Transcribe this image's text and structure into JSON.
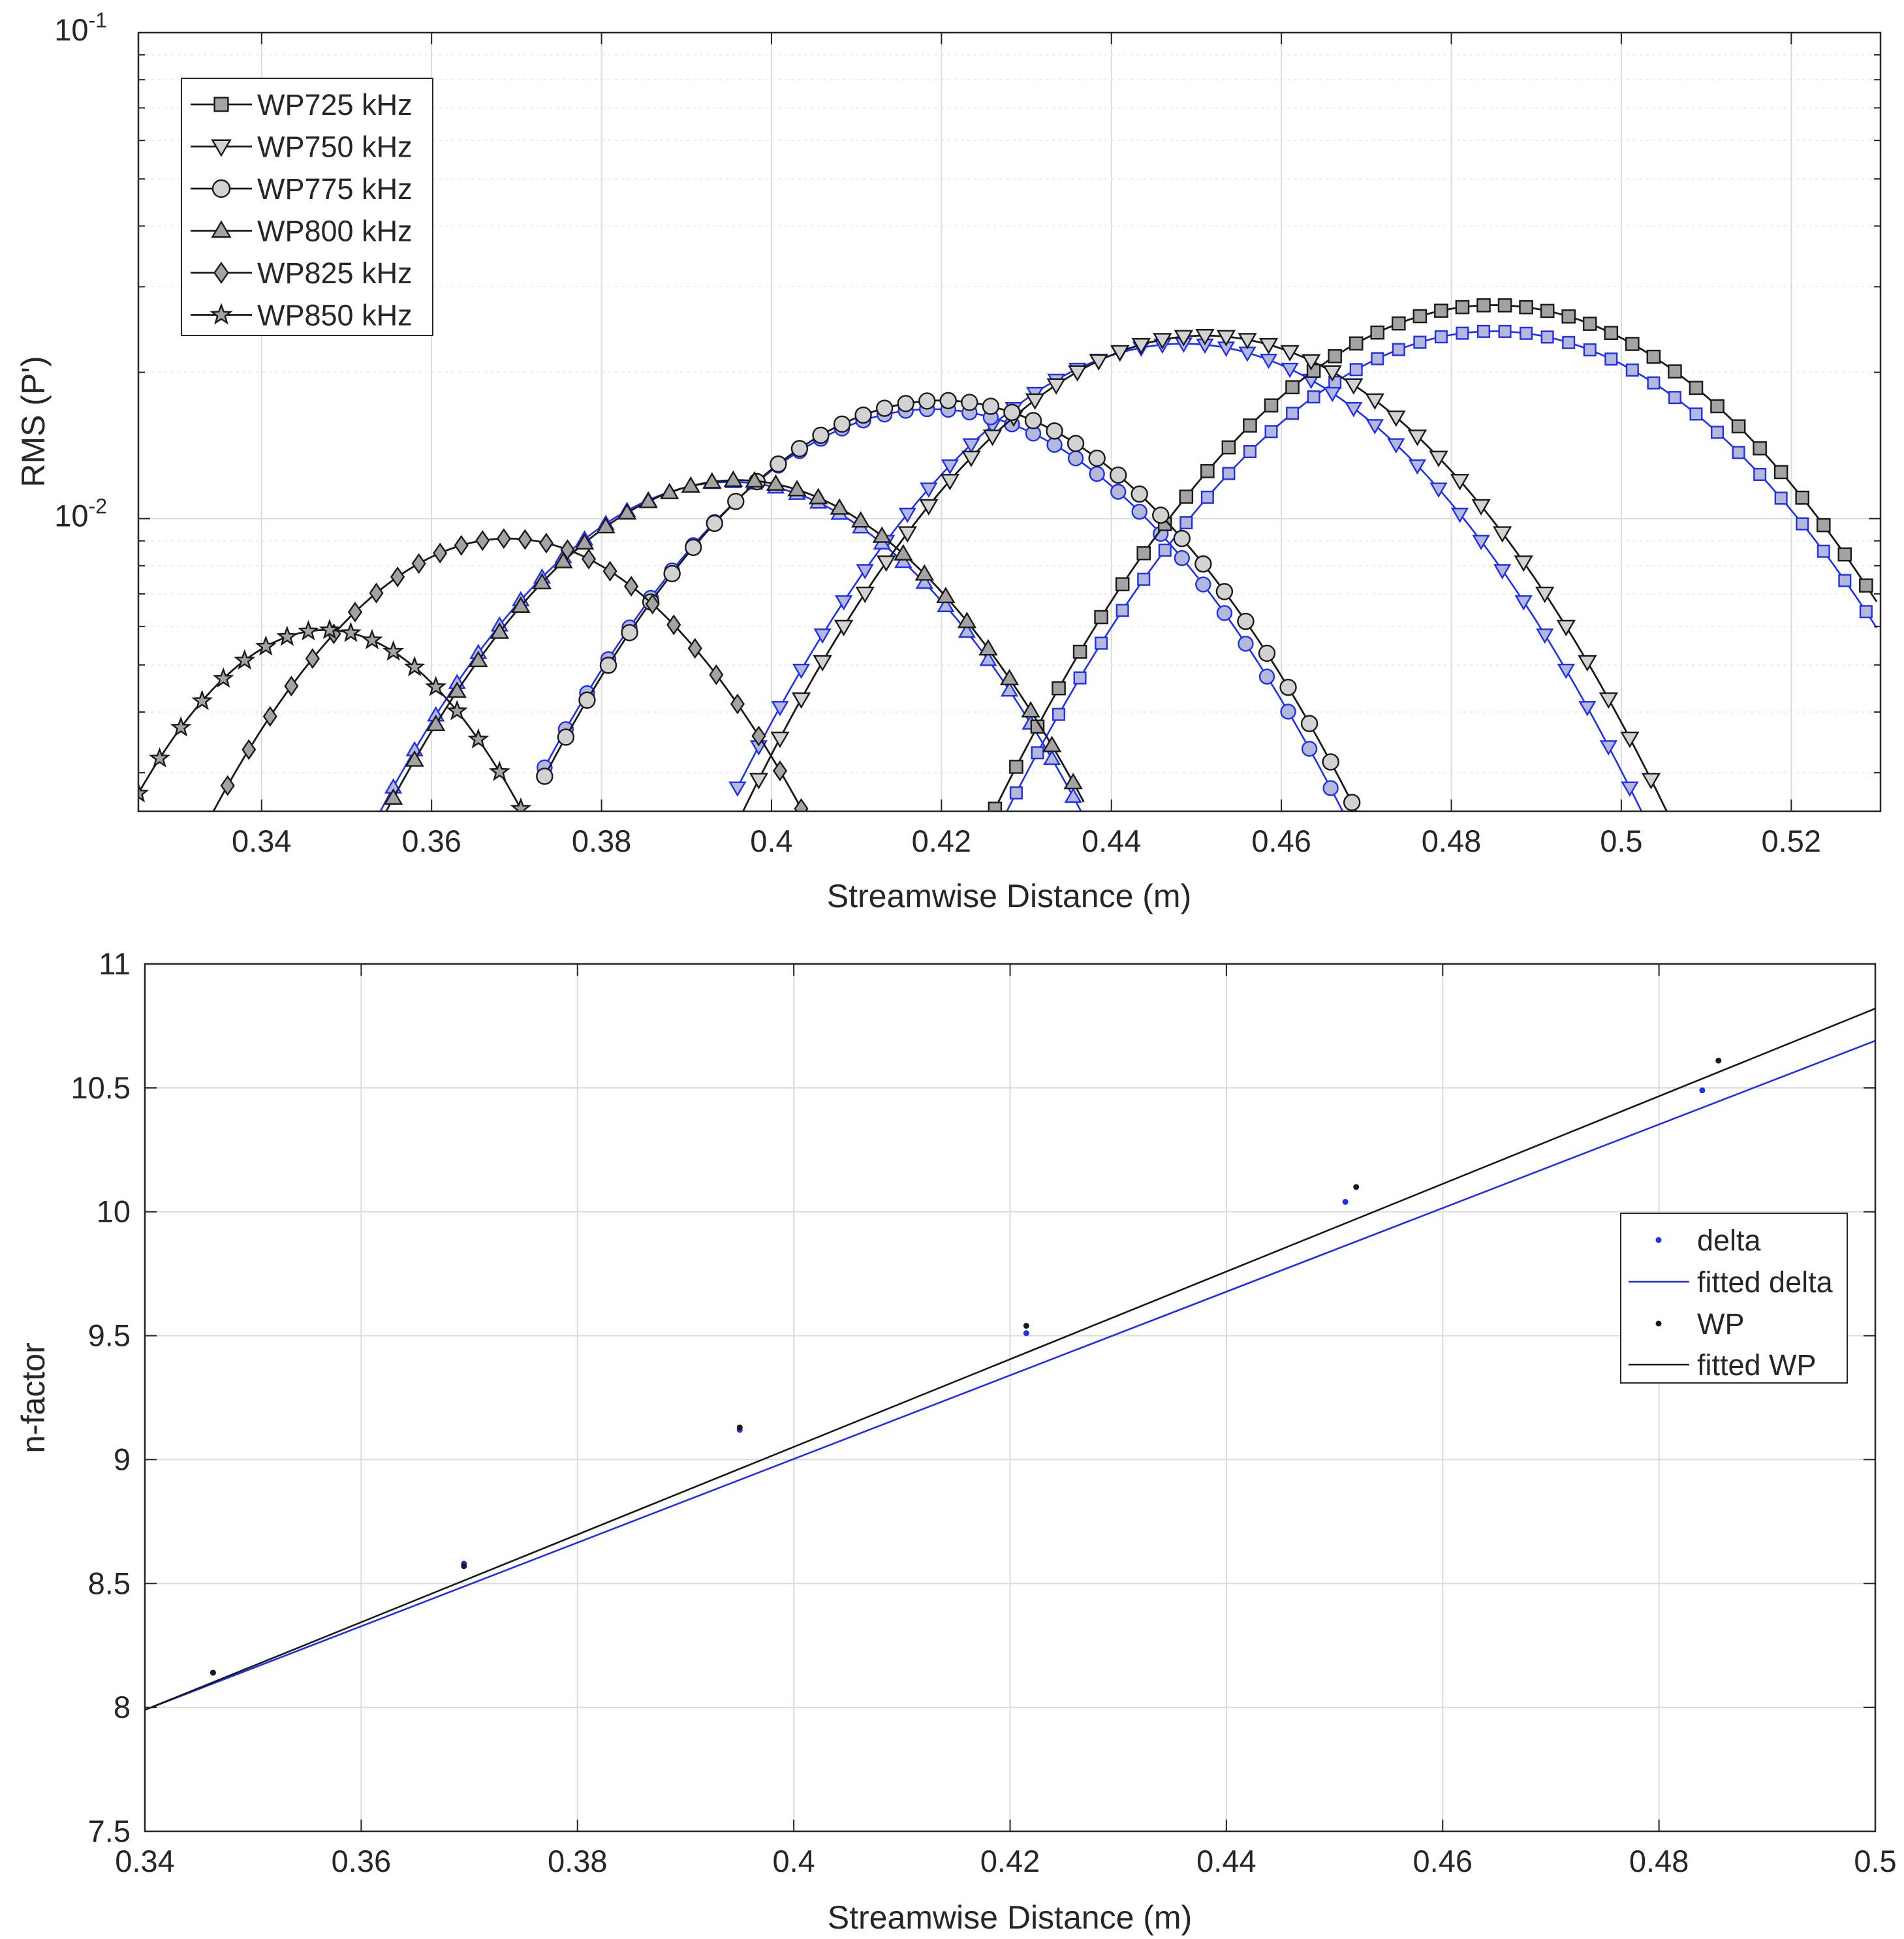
{
  "chart_data": [
    {
      "type": "line",
      "scale": "log",
      "xlabel": "Streamwise Distance (m)",
      "ylabel": "RMS (P')",
      "xlim": [
        0.3255,
        0.5305
      ],
      "ylim": [
        0.0025,
        0.1
      ],
      "xticks": [
        "0.34",
        "0.36",
        "0.38",
        "0.4",
        "0.42",
        "0.44",
        "0.46",
        "0.48",
        "0.5",
        "0.52"
      ],
      "ytick_labels": [
        {
          "base": "10",
          "exp": "-1",
          "value": 0.1
        },
        {
          "base": "10",
          "exp": "-2",
          "value": 0.01
        }
      ],
      "grid": true,
      "legend_position": "top-left",
      "colors": {
        "wp": "#1a1a1a",
        "delta": "#1f2ff0",
        "marker_fill_dark": "#a3a3a3",
        "marker_fill_light": "#d2d2d2",
        "marker_fill_blue": "#b4b9dc"
      },
      "series": [
        {
          "name": "WP725 kHz",
          "marker": "square",
          "fill": "dark",
          "center": 0.485,
          "peak": 0.0275,
          "width": 0.038,
          "x_start": 0.4263,
          "x_end": 0.5305,
          "delta_peak": 0.0243,
          "delta_shift": 0.0
        },
        {
          "name": "WP750 kHz",
          "marker": "triangle-down",
          "fill": "light",
          "center": 0.451,
          "peak": 0.0238,
          "width": 0.0362,
          "x_start": 0.396,
          "x_end": 0.5085,
          "delta_peak": 0.0229,
          "delta_shift": -0.0025
        },
        {
          "name": "WP775 kHz",
          "marker": "circle",
          "fill": "light",
          "center": 0.42,
          "peak": 0.0175,
          "width": 0.035,
          "x_start": 0.3733,
          "x_end": 0.4715,
          "delta_peak": 0.0168,
          "delta_shift": -0.0011
        },
        {
          "name": "WP800 kHz",
          "marker": "triangle-up",
          "fill": "dark",
          "center": 0.396,
          "peak": 0.012,
          "width": 0.033,
          "x_start": 0.353,
          "x_end": 0.437,
          "delta_peak": 0.0119,
          "delta_shift": -0.0008
        },
        {
          "name": "WP825 kHz",
          "marker": "diamond",
          "fill": "dark",
          "center": 0.369,
          "peak": 0.0091,
          "width": 0.0305,
          "x_start": 0.3335,
          "x_end": 0.4045,
          "delta_peak": null,
          "delta_shift": 0
        },
        {
          "name": "WP850 kHz",
          "marker": "star",
          "fill": "dark",
          "center": 0.3475,
          "peak": 0.0059,
          "width": 0.025,
          "x_start": 0.3255,
          "x_end": 0.3735,
          "delta_peak": null,
          "delta_shift": 0
        }
      ]
    },
    {
      "type": "scatter",
      "xlabel": "Streamwise Distance (m)",
      "ylabel": "n-factor",
      "xlim": [
        0.34,
        0.5
      ],
      "ylim": [
        7.5,
        11
      ],
      "xticks": [
        "0.34",
        "0.36",
        "0.38",
        "0.4",
        "0.42",
        "0.44",
        "0.46",
        "0.48",
        "0.5"
      ],
      "yticks": [
        "7.5",
        "8",
        "8.5",
        "9",
        "9.5",
        "10",
        "10.5",
        "11"
      ],
      "grid": true,
      "legend_position": "right",
      "legend": [
        "delta",
        "fitted delta",
        "WP",
        "fitted WP"
      ],
      "series": [
        {
          "name": "delta",
          "style": "dots",
          "color": "#1f2ff0",
          "x": [
            0.3463,
            0.3695,
            0.395,
            0.4215,
            0.451,
            0.484
          ],
          "y": [
            8.14,
            8.58,
            9.12,
            9.51,
            10.04,
            10.49
          ]
        },
        {
          "name": "fitted delta",
          "style": "line",
          "color": "#1f2ff0",
          "x": [
            0.34,
            0.5
          ],
          "y": [
            7.99,
            10.69
          ]
        },
        {
          "name": "WP",
          "style": "dots",
          "color": "#1a1a1a",
          "x": [
            0.3463,
            0.3695,
            0.395,
            0.4215,
            0.452,
            0.4855
          ],
          "y": [
            8.14,
            8.57,
            9.13,
            9.54,
            10.1,
            10.61
          ]
        },
        {
          "name": "fitted WP",
          "style": "line",
          "color": "#1a1a1a",
          "x": [
            0.34,
            0.5
          ],
          "y": [
            7.99,
            10.82
          ]
        }
      ]
    }
  ]
}
